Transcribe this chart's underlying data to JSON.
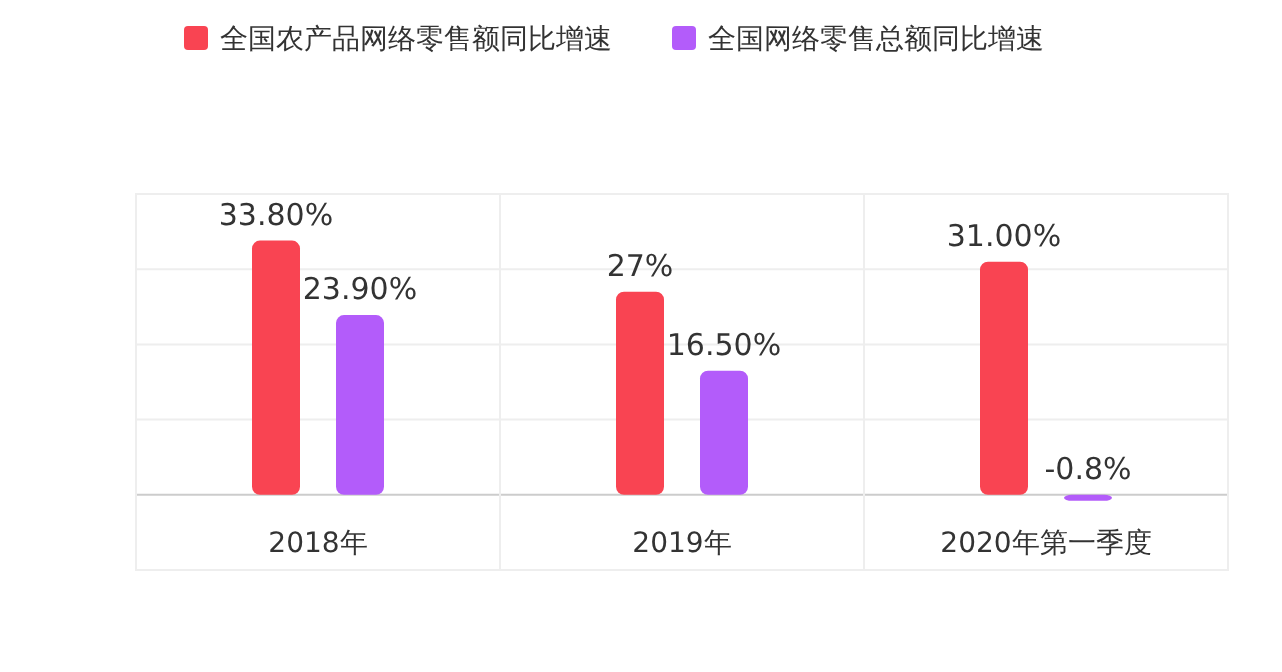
{
  "chart_data": {
    "type": "bar",
    "categories": [
      "2018年",
      "2019年",
      "2020年第一季度"
    ],
    "series": [
      {
        "name": "全国农产品网络零售额同比增速",
        "color": "#f94452",
        "values": [
          33.8,
          27,
          31
        ],
        "value_labels": [
          "33.80%",
          "27%",
          "31.00%"
        ]
      },
      {
        "name": "全国网络零售总额同比增速",
        "color": "#b35cfa",
        "values": [
          23.9,
          16.5,
          -0.8
        ],
        "value_labels": [
          "23.90%",
          "16.50%",
          "-0.8%"
        ]
      }
    ],
    "ylim": [
      -10,
      40
    ],
    "yticks": [
      {
        "value": 0,
        "label": null
      },
      {
        "value": 10,
        "label": null
      },
      {
        "value": 20,
        "label": null
      },
      {
        "value": 30,
        "label": null
      },
      {
        "value": 40,
        "label": null
      }
    ],
    "grid": "y",
    "legend": "top"
  }
}
